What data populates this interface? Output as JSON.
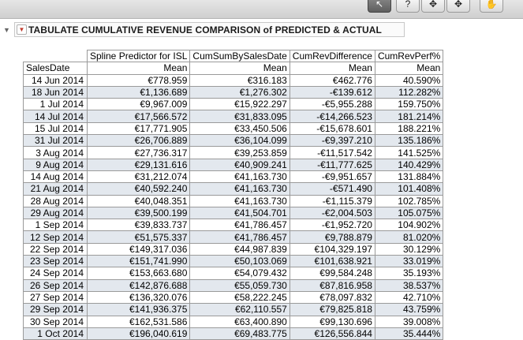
{
  "toolbar": {
    "buttons": [
      {
        "icon": "pointer-arrow-icon",
        "glyph": "↖"
      },
      {
        "icon": "help-icon",
        "glyph": "?"
      },
      {
        "icon": "crosshair-select-icon",
        "glyph": "✥"
      },
      {
        "icon": "move-arrows-icon",
        "glyph": "✥"
      },
      {
        "icon": "grab-hand-icon",
        "glyph": "✋"
      }
    ]
  },
  "section": {
    "title": "TABULATE CUMULATIVE REVENUE COMPARISON of PREDICTED & ACTUAL",
    "collapse_glyph": "▼",
    "menu_glyph": "▼"
  },
  "table": {
    "row_header_label": "SalesDate",
    "columns": [
      "Spline Predictor for ISL",
      "CumSumBySalesDate",
      "CumRevDifference",
      "CumRevPerf%"
    ],
    "stat_label": "Mean",
    "rows": [
      [
        "14 Jun 2014",
        "€778.959",
        "€316.183",
        "€462.776",
        "40.590%"
      ],
      [
        "18 Jun 2014",
        "€1,136.689",
        "€1,276.302",
        "-€139.612",
        "112.282%"
      ],
      [
        "1 Jul 2014",
        "€9,967.009",
        "€15,922.297",
        "-€5,955.288",
        "159.750%"
      ],
      [
        "14 Jul 2014",
        "€17,566.572",
        "€31,833.095",
        "-€14,266.523",
        "181.214%"
      ],
      [
        "15 Jul 2014",
        "€17,771.905",
        "€33,450.506",
        "-€15,678.601",
        "188.221%"
      ],
      [
        "31 Jul 2014",
        "€26,706.889",
        "€36,104.099",
        "-€9,397.210",
        "135.186%"
      ],
      [
        "3 Aug 2014",
        "€27,736.317",
        "€39,253.859",
        "-€11,517.542",
        "141.525%"
      ],
      [
        "9 Aug 2014",
        "€29,131.616",
        "€40,909.241",
        "-€11,777.625",
        "140.429%"
      ],
      [
        "14 Aug 2014",
        "€31,212.074",
        "€41,163.730",
        "-€9,951.657",
        "131.884%"
      ],
      [
        "21 Aug 2014",
        "€40,592.240",
        "€41,163.730",
        "-€571.490",
        "101.408%"
      ],
      [
        "28 Aug 2014",
        "€40,048.351",
        "€41,163.730",
        "-€1,115.379",
        "102.785%"
      ],
      [
        "29 Aug 2014",
        "€39,500.199",
        "€41,504.701",
        "-€2,004.503",
        "105.075%"
      ],
      [
        "1 Sep 2014",
        "€39,833.737",
        "€41,786.457",
        "-€1,952.720",
        "104.902%"
      ],
      [
        "12 Sep 2014",
        "€51,575.337",
        "€41,786.457",
        "€9,788.879",
        "81.020%"
      ],
      [
        "22 Sep 2014",
        "€149,317.036",
        "€44,987.839",
        "€104,329.197",
        "30.129%"
      ],
      [
        "23 Sep 2014",
        "€151,741.990",
        "€50,103.069",
        "€101,638.921",
        "33.019%"
      ],
      [
        "24 Sep 2014",
        "€153,663.680",
        "€54,079.432",
        "€99,584.248",
        "35.193%"
      ],
      [
        "26 Sep 2014",
        "€142,876.688",
        "€55,059.730",
        "€87,816.958",
        "38.537%"
      ],
      [
        "27 Sep 2014",
        "€136,320.076",
        "€58,222.245",
        "€78,097.832",
        "42.710%"
      ],
      [
        "29 Sep 2014",
        "€141,936.375",
        "€62,110.557",
        "€79,825.818",
        "43.759%"
      ],
      [
        "30 Sep 2014",
        "€162,531.586",
        "€63,400.890",
        "€99,130.696",
        "39.008%"
      ],
      [
        "1 Oct 2014",
        "€196,040.619",
        "€69,483.775",
        "€126,556.844",
        "35.444%"
      ]
    ]
  }
}
